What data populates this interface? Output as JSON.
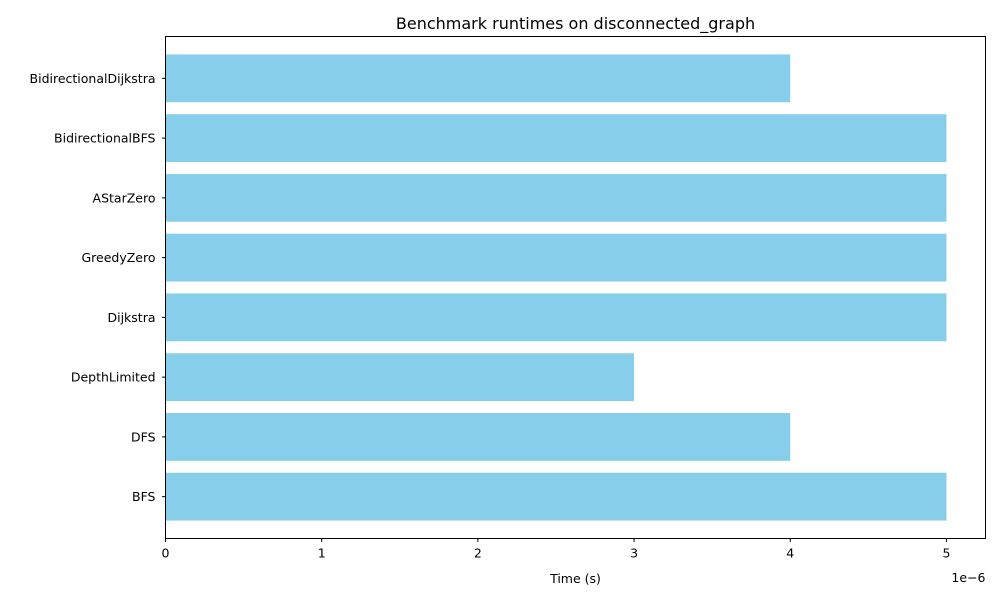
{
  "chart_data": {
    "type": "bar",
    "orientation": "horizontal",
    "title": "Benchmark runtimes on disconnected_graph",
    "xlabel": "Time (s)",
    "ylabel": "",
    "x_scale_label": "1e−6",
    "categories": [
      "BFS",
      "DFS",
      "DepthLimited",
      "Dijkstra",
      "GreedyZero",
      "AStarZero",
      "BidirectionalBFS",
      "BidirectionalDijkstra"
    ],
    "values": [
      5e-06,
      4e-06,
      3e-06,
      5e-06,
      5e-06,
      5e-06,
      5e-06,
      4e-06
    ],
    "xlim": [
      0,
      5.25e-06
    ],
    "xticks": [
      0,
      1e-06,
      2e-06,
      3e-06,
      4e-06,
      5e-06
    ],
    "xtick_labels": [
      "0",
      "1",
      "2",
      "3",
      "4",
      "5"
    ],
    "bar_color": "#87ceeb",
    "grid": false,
    "legend": "none"
  }
}
